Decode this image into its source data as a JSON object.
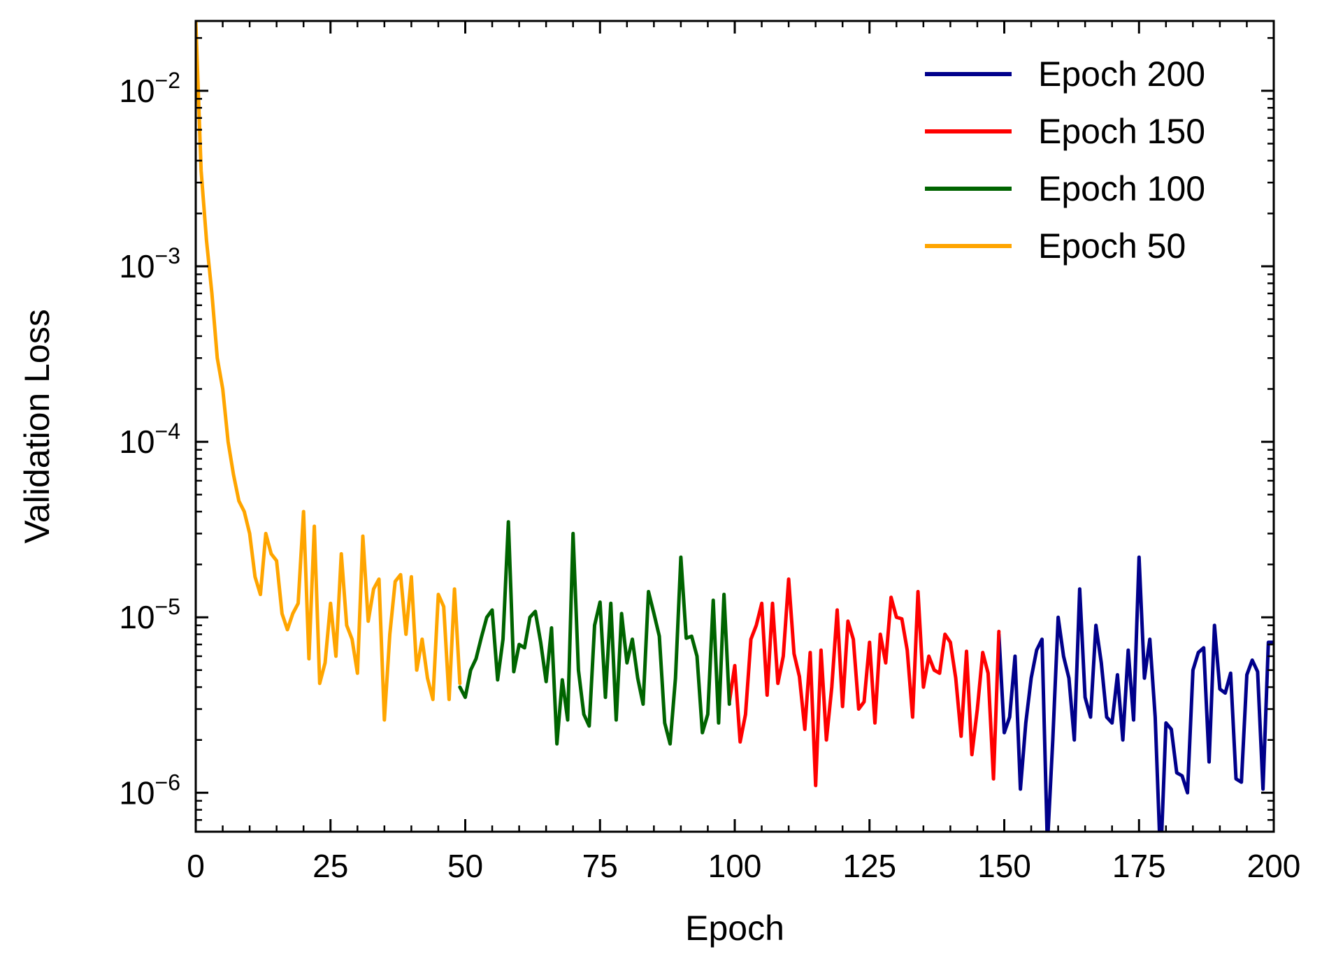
{
  "chart_data": {
    "type": "line",
    "xlabel": "Epoch",
    "ylabel": "Validation Loss",
    "yscale": "log",
    "xlim": [
      0,
      200
    ],
    "ylim": [
      6e-07,
      0.025
    ],
    "grid": false,
    "legend_position": "top-right",
    "x_ticks": [
      0,
      25,
      50,
      75,
      100,
      125,
      150,
      175,
      200
    ],
    "x_tick_labels": [
      "0",
      "25",
      "50",
      "75",
      "100",
      "125",
      "150",
      "175",
      "200"
    ],
    "y_ticks": [
      1e-06,
      1e-05,
      0.0001,
      0.001,
      0.01
    ],
    "y_tick_labels": [
      {
        "base": "10",
        "exp": "−6"
      },
      {
        "base": "10",
        "exp": "−5"
      },
      {
        "base": "10",
        "exp": "−4"
      },
      {
        "base": "10",
        "exp": "−3"
      },
      {
        "base": "10",
        "exp": "−2"
      }
    ],
    "legend": [
      {
        "label": "Epoch 200",
        "color": "#00008b"
      },
      {
        "label": "Epoch 150",
        "color": "#ff0000"
      },
      {
        "label": "Epoch 100",
        "color": "#006400"
      },
      {
        "label": "Epoch 50",
        "color": "#ffa500"
      }
    ],
    "series": [
      {
        "name": "Epoch 200",
        "color": "#00008b",
        "x": [
          149,
          150,
          151,
          152,
          153,
          154,
          155,
          156,
          157,
          158,
          159,
          160,
          161,
          162,
          163,
          164,
          165,
          166,
          167,
          168,
          169,
          170,
          171,
          172,
          173,
          174,
          175,
          176,
          177,
          178,
          179,
          180,
          181,
          182,
          183,
          184,
          185,
          186,
          187,
          188,
          189,
          190,
          191,
          192,
          193,
          194,
          195,
          196,
          197,
          198,
          199,
          200
        ],
        "y": [
          8e-06,
          2.2e-06,
          2.7e-06,
          6e-06,
          1.05e-06,
          2.5e-06,
          4.5e-06,
          6.5e-06,
          7.5e-06,
          5e-07,
          2e-06,
          1e-05,
          6e-06,
          4.5e-06,
          2e-06,
          1.45e-05,
          3.5e-06,
          2.7e-06,
          9e-06,
          5.5e-06,
          2.7e-06,
          2.5e-06,
          4.7e-06,
          2e-06,
          6.5e-06,
          2.6e-06,
          2.2e-05,
          4.5e-06,
          7.5e-06,
          2.7e-06,
          4e-07,
          2.5e-06,
          2.3e-06,
          1.3e-06,
          1.25e-06,
          1e-06,
          5e-06,
          6.3e-06,
          6.7e-06,
          1.5e-06,
          9e-06,
          3.9e-06,
          3.7e-06,
          4.8e-06,
          1.2e-06,
          1.15e-06,
          4.7e-06,
          5.7e-06,
          4.9e-06,
          1.05e-06,
          7.2e-06,
          7.2e-06
        ]
      },
      {
        "name": "Epoch 150",
        "color": "#ff0000",
        "x": [
          99,
          100,
          101,
          102,
          103,
          104,
          105,
          106,
          107,
          108,
          109,
          110,
          111,
          112,
          113,
          114,
          115,
          116,
          117,
          118,
          119,
          120,
          121,
          122,
          123,
          124,
          125,
          126,
          127,
          128,
          129,
          130,
          131,
          132,
          133,
          134,
          135,
          136,
          137,
          138,
          139,
          140,
          141,
          142,
          143,
          144,
          145,
          146,
          147,
          148,
          149
        ],
        "y": [
          3.3e-06,
          5.3e-06,
          1.95e-06,
          2.8e-06,
          7.5e-06,
          9e-06,
          1.2e-05,
          3.6e-06,
          1.2e-05,
          4.2e-06,
          6e-06,
          1.65e-05,
          6.2e-06,
          4.6e-06,
          2.3e-06,
          6.3e-06,
          1.1e-06,
          6.5e-06,
          2e-06,
          4e-06,
          1.1e-05,
          3.1e-06,
          9.5e-06,
          7.5e-06,
          3e-06,
          3.3e-06,
          7.2e-06,
          2.5e-06,
          8e-06,
          5.5e-06,
          1.3e-05,
          1e-05,
          9.8e-06,
          6.5e-06,
          2.7e-06,
          1.4e-05,
          4e-06,
          6e-06,
          5e-06,
          4.8e-06,
          8e-06,
          7.2e-06,
          4.5e-06,
          2.1e-06,
          6.4e-06,
          1.65e-06,
          3e-06,
          6.3e-06,
          4.8e-06,
          1.2e-06,
          8.3e-06
        ]
      },
      {
        "name": "Epoch 100",
        "color": "#006400",
        "x": [
          49,
          50,
          51,
          52,
          53,
          54,
          55,
          56,
          57,
          58,
          59,
          60,
          61,
          62,
          63,
          64,
          65,
          66,
          67,
          68,
          69,
          70,
          71,
          72,
          73,
          74,
          75,
          76,
          77,
          78,
          79,
          80,
          81,
          82,
          83,
          84,
          85,
          86,
          87,
          88,
          89,
          90,
          91,
          92,
          93,
          94,
          95,
          96,
          97,
          98,
          99
        ],
        "y": [
          4e-06,
          3.5e-06,
          5e-06,
          5.8e-06,
          7.7e-06,
          1e-05,
          1.1e-05,
          4.4e-06,
          7.5e-06,
          3.5e-05,
          4.9e-06,
          7e-06,
          6.7e-06,
          1e-05,
          1.08e-05,
          7.2e-06,
          4.3e-06,
          8.7e-06,
          1.9e-06,
          4.4e-06,
          2.6e-06,
          3e-05,
          5e-06,
          2.8e-06,
          2.4e-06,
          9e-06,
          1.22e-05,
          3.5e-06,
          1.2e-05,
          2.6e-06,
          1.05e-05,
          5.5e-06,
          7.5e-06,
          4.5e-06,
          3.2e-06,
          1.4e-05,
          1.05e-05,
          7.8e-06,
          2.5e-06,
          1.9e-06,
          4.5e-06,
          2.2e-05,
          7.6e-06,
          7.8e-06,
          6e-06,
          2.2e-06,
          2.8e-06,
          1.25e-05,
          2.5e-06,
          1.35e-05,
          3.2e-06
        ]
      },
      {
        "name": "Epoch 50",
        "color": "#ffa500",
        "x": [
          0,
          1,
          2,
          3,
          4,
          5,
          6,
          7,
          8,
          9,
          10,
          11,
          12,
          13,
          14,
          15,
          16,
          17,
          18,
          19,
          20,
          21,
          22,
          23,
          24,
          25,
          26,
          27,
          28,
          29,
          30,
          31,
          32,
          33,
          34,
          35,
          36,
          37,
          38,
          39,
          40,
          41,
          42,
          43,
          44,
          45,
          46,
          47,
          48,
          49
        ],
        "y": [
          0.025,
          0.0035,
          0.0014,
          0.0007,
          0.0003,
          0.0002,
          0.0001,
          6.5e-05,
          4.6e-05,
          4e-05,
          3e-05,
          1.7e-05,
          1.35e-05,
          3e-05,
          2.3e-05,
          2.1e-05,
          1.05e-05,
          8.5e-06,
          1.05e-05,
          1.2e-05,
          4e-05,
          5.8e-06,
          3.3e-05,
          4.2e-06,
          5.5e-06,
          1.2e-05,
          6e-06,
          2.3e-05,
          9e-06,
          7.5e-06,
          4.8e-06,
          2.9e-05,
          9.5e-06,
          1.45e-05,
          1.65e-05,
          2.6e-06,
          8e-06,
          1.6e-05,
          1.75e-05,
          8e-06,
          1.7e-05,
          5e-06,
          7.5e-06,
          4.5e-06,
          3.4e-06,
          1.35e-05,
          1.15e-05,
          3.4e-06,
          1.45e-05,
          4.2e-06
        ]
      }
    ]
  }
}
